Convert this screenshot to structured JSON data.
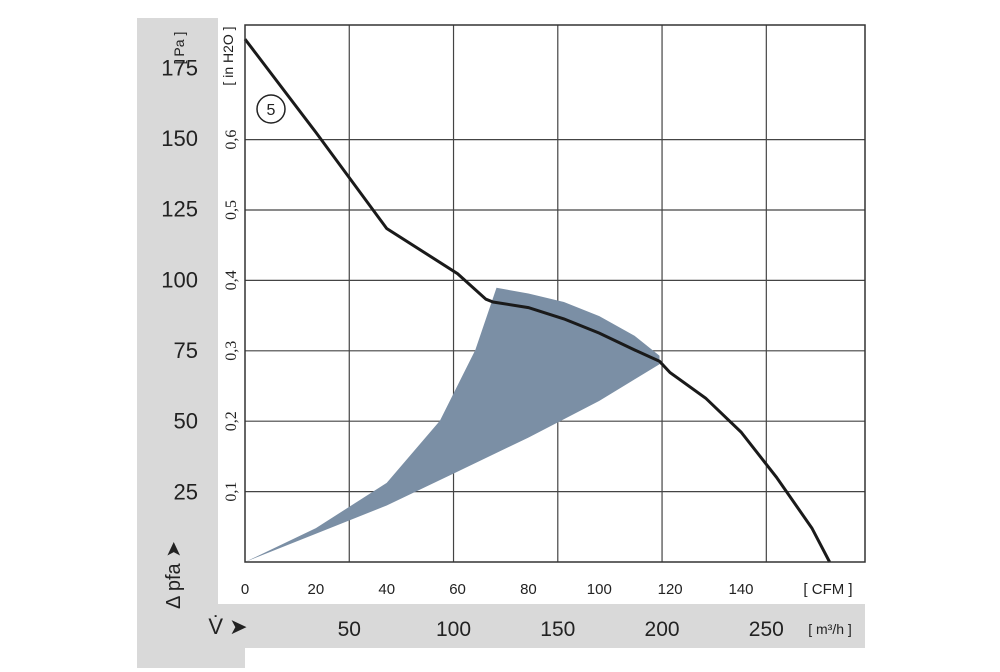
{
  "chart_data": {
    "type": "line",
    "xlabel": "V̇ ➤",
    "ylabel": "Δ pfa ➤",
    "curve_label": "5",
    "y_pa": {
      "unit": "[ Pa ]",
      "ticks": [
        "25",
        "50",
        "75",
        "100",
        "125",
        "150",
        "175"
      ],
      "ylim": [
        0,
        190
      ]
    },
    "y_inh2o": {
      "unit": "[ in H2O ]",
      "ticks": [
        "0,1",
        "0,2",
        "0,3",
        "0,4",
        "0,5",
        "0,6"
      ]
    },
    "x_cfm": {
      "unit": "[ CFM ]",
      "ticks": [
        "0",
        "20",
        "40",
        "60",
        "80",
        "100",
        "120",
        "140"
      ],
      "xlim": [
        0,
        175
      ]
    },
    "x_m3h": {
      "unit": "[ m³/h ]",
      "ticks": [
        "50",
        "100",
        "150",
        "200",
        "250"
      ]
    },
    "series": [
      {
        "x_cfm": [
          0,
          20,
          40,
          60,
          68,
          70,
          80,
          90,
          100,
          110,
          117,
          120,
          130,
          140,
          150,
          160,
          165
        ],
        "y_pa": [
          185,
          152,
          118,
          102,
          93,
          92,
          90,
          86,
          81,
          75,
          71,
          67,
          58,
          46,
          30,
          12,
          0
        ]
      }
    ],
    "operating_range": {
      "color": "#7b8fa5",
      "upper_x_cfm": [
        0,
        20,
        40,
        55,
        65,
        71,
        80,
        90,
        100,
        110,
        117
      ],
      "upper_y_pa": [
        0,
        12,
        28,
        50,
        75,
        97,
        95,
        92,
        87,
        80,
        73
      ],
      "lower_x_cfm": [
        117,
        100,
        80,
        60,
        40,
        20,
        0
      ],
      "lower_y_pa": [
        70,
        57,
        44,
        32,
        20,
        10,
        0
      ]
    }
  }
}
